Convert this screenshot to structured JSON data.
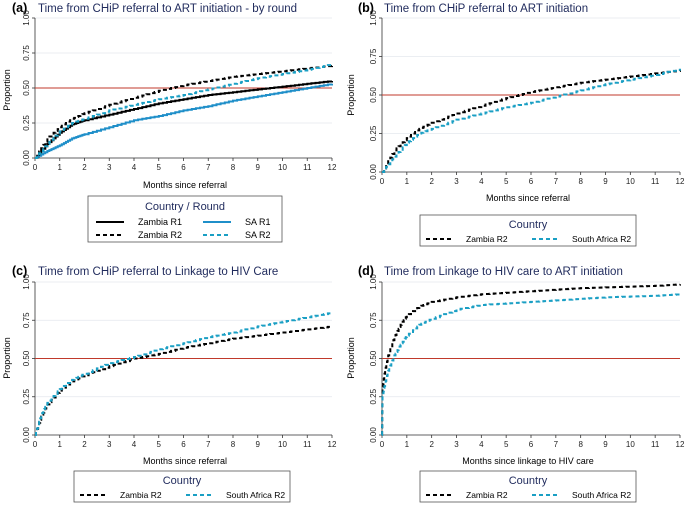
{
  "chart_data": [
    {
      "type": "line",
      "letter": "(a)",
      "title": "Time from CHiP referral to ART initiation - by round",
      "xlabel": "Months since referral",
      "ylabel": "Proportion",
      "xlim": [
        0,
        12
      ],
      "ylim": [
        0,
        1
      ],
      "x_ticks": [
        "0",
        "1",
        "2",
        "3",
        "4",
        "5",
        "6",
        "7",
        "8",
        "9",
        "10",
        "11",
        "12"
      ],
      "y_ticks": [
        "0.00",
        "0.25",
        "0.50",
        "0.75",
        "1.00"
      ],
      "reference_line": 0.5,
      "legend_title": "Country / Round",
      "series": [
        {
          "name": "Zambia R1",
          "style": "solid-black",
          "x": [
            0,
            0.5,
            1,
            1.5,
            2,
            3,
            4,
            5,
            6,
            7,
            8,
            9,
            10,
            11,
            12
          ],
          "y": [
            0,
            0.1,
            0.18,
            0.24,
            0.27,
            0.31,
            0.35,
            0.39,
            0.42,
            0.45,
            0.47,
            0.49,
            0.51,
            0.53,
            0.55
          ]
        },
        {
          "name": "SA R1",
          "style": "solid-blue",
          "x": [
            0,
            0.5,
            1,
            1.5,
            2,
            3,
            4,
            5,
            6,
            7,
            8,
            9,
            10,
            11,
            12
          ],
          "y": [
            0,
            0.05,
            0.09,
            0.14,
            0.17,
            0.22,
            0.27,
            0.3,
            0.34,
            0.37,
            0.41,
            0.44,
            0.47,
            0.5,
            0.53
          ]
        },
        {
          "name": "Zambia R2",
          "style": "dash-black",
          "x": [
            0,
            0.5,
            1,
            1.5,
            2,
            3,
            4,
            5,
            6,
            7,
            8,
            9,
            10,
            11,
            12
          ],
          "y": [
            0,
            0.14,
            0.22,
            0.28,
            0.32,
            0.38,
            0.43,
            0.48,
            0.52,
            0.55,
            0.58,
            0.6,
            0.62,
            0.64,
            0.66
          ]
        },
        {
          "name": "SA R2",
          "style": "dash-blue",
          "x": [
            0,
            0.5,
            1,
            1.5,
            2,
            3,
            4,
            5,
            6,
            7,
            8,
            9,
            10,
            11,
            12
          ],
          "y": [
            0,
            0.1,
            0.19,
            0.25,
            0.28,
            0.34,
            0.38,
            0.42,
            0.45,
            0.49,
            0.53,
            0.57,
            0.6,
            0.63,
            0.67
          ]
        }
      ]
    },
    {
      "type": "line",
      "letter": "(b)",
      "title": "Time from CHiP referral to ART initiation",
      "xlabel": "Months since referral",
      "ylabel": "Proportion",
      "xlim": [
        0,
        12
      ],
      "ylim": [
        0,
        1
      ],
      "x_ticks": [
        "0",
        "1",
        "2",
        "3",
        "4",
        "5",
        "6",
        "7",
        "8",
        "9",
        "10",
        "11",
        "12"
      ],
      "y_ticks": [
        "0.00",
        "0.25",
        "0.50",
        "0.75",
        "1.00"
      ],
      "reference_line": 0.5,
      "legend_title": "Country",
      "series": [
        {
          "name": "Zambia R2",
          "style": "dash-black",
          "x": [
            0,
            0.5,
            1,
            1.5,
            2,
            3,
            4,
            5,
            6,
            7,
            8,
            9,
            10,
            11,
            12
          ],
          "y": [
            0,
            0.14,
            0.22,
            0.28,
            0.32,
            0.38,
            0.43,
            0.48,
            0.52,
            0.55,
            0.58,
            0.6,
            0.62,
            0.64,
            0.66
          ]
        },
        {
          "name": "South Africa R2",
          "style": "dash-blue",
          "x": [
            0,
            0.5,
            1,
            1.5,
            2,
            3,
            4,
            5,
            6,
            7,
            8,
            9,
            10,
            11,
            12
          ],
          "y": [
            0,
            0.1,
            0.19,
            0.25,
            0.28,
            0.34,
            0.38,
            0.42,
            0.45,
            0.49,
            0.53,
            0.57,
            0.6,
            0.63,
            0.67
          ]
        }
      ]
    },
    {
      "type": "line",
      "letter": "(c)",
      "title": "Time from CHiP referral to Linkage to HIV Care",
      "xlabel": "Months since referral",
      "ylabel": "Proportion",
      "xlim": [
        0,
        12
      ],
      "ylim": [
        0,
        1
      ],
      "x_ticks": [
        "0",
        "1",
        "2",
        "3",
        "4",
        "5",
        "6",
        "7",
        "8",
        "9",
        "10",
        "11",
        "12"
      ],
      "y_ticks": [
        "0.00",
        "0.25",
        "0.50",
        "0.75",
        "1.00"
      ],
      "reference_line": 0.5,
      "legend_title": "Country",
      "series": [
        {
          "name": "Zambia R2",
          "style": "dash-black",
          "x": [
            0,
            0.25,
            0.5,
            1,
            1.5,
            2,
            3,
            4,
            5,
            6,
            7,
            8,
            9,
            10,
            11,
            12
          ],
          "y": [
            0,
            0.12,
            0.2,
            0.29,
            0.35,
            0.39,
            0.45,
            0.5,
            0.53,
            0.57,
            0.6,
            0.63,
            0.65,
            0.67,
            0.69,
            0.71
          ]
        },
        {
          "name": "South Africa R2",
          "style": "dash-blue",
          "x": [
            0,
            0.25,
            0.5,
            1,
            1.5,
            2,
            3,
            4,
            5,
            6,
            7,
            8,
            9,
            10,
            11,
            12
          ],
          "y": [
            0,
            0.13,
            0.21,
            0.3,
            0.36,
            0.4,
            0.47,
            0.51,
            0.56,
            0.6,
            0.64,
            0.67,
            0.71,
            0.74,
            0.77,
            0.8
          ]
        }
      ]
    },
    {
      "type": "line",
      "letter": "(d)",
      "title": "Time from Linkage to HIV care to ART initiation",
      "xlabel": "Months since linkage to HIV care",
      "ylabel": "Proportion",
      "xlim": [
        0,
        12
      ],
      "ylim": [
        0,
        1
      ],
      "x_ticks": [
        "0",
        "1",
        "2",
        "3",
        "4",
        "5",
        "6",
        "7",
        "8",
        "9",
        "10",
        "11",
        "12"
      ],
      "y_ticks": [
        "0.00",
        "0.25",
        "0.50",
        "0.75",
        "1.00"
      ],
      "reference_line": 0.5,
      "legend_title": "Country",
      "series": [
        {
          "name": "Zambia R2",
          "style": "dash-black",
          "x": [
            0,
            0.02,
            0.1,
            0.25,
            0.5,
            0.75,
            1,
            1.5,
            2,
            3,
            4,
            5,
            6,
            7,
            8,
            9,
            10,
            11,
            12
          ],
          "y": [
            0,
            0.3,
            0.4,
            0.52,
            0.64,
            0.72,
            0.78,
            0.84,
            0.87,
            0.9,
            0.92,
            0.93,
            0.94,
            0.95,
            0.96,
            0.965,
            0.97,
            0.975,
            0.985
          ]
        },
        {
          "name": "South Africa R2",
          "style": "dash-blue",
          "x": [
            0,
            0.02,
            0.1,
            0.25,
            0.5,
            0.75,
            1,
            1.5,
            2,
            3,
            4,
            5,
            6,
            7,
            8,
            9,
            10,
            11,
            12
          ],
          "y": [
            0,
            0.25,
            0.32,
            0.42,
            0.52,
            0.59,
            0.65,
            0.72,
            0.76,
            0.82,
            0.85,
            0.86,
            0.87,
            0.88,
            0.89,
            0.9,
            0.905,
            0.91,
            0.92
          ]
        }
      ]
    }
  ],
  "colors": {
    "black_line": "#000000",
    "blue_solid": "#1f8fc9",
    "blue_dash": "#1a9fc4",
    "ref_line": "#c0392b",
    "title": "#1f2a5c",
    "grid": "#e4e8ee"
  }
}
